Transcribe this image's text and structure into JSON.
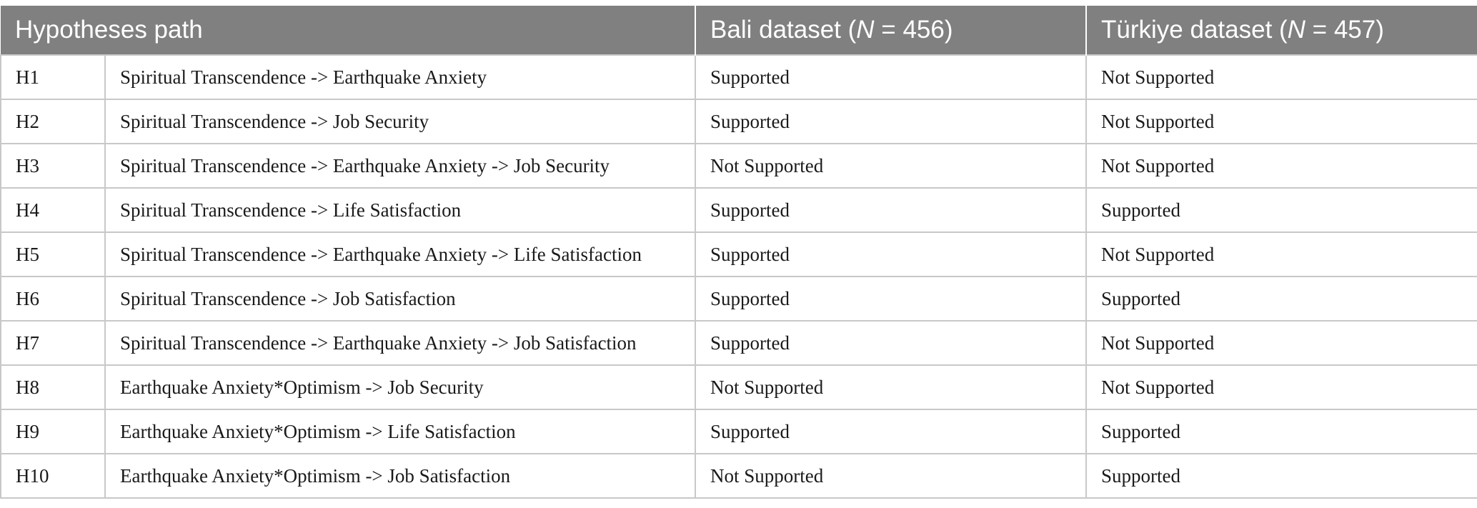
{
  "table": {
    "headers": {
      "hypotheses": "Hypotheses path",
      "bali_prefix": "Bali dataset (",
      "bali_n": "N",
      "bali_suffix": " = 456)",
      "turkiye_prefix": "Türkiye dataset (",
      "turkiye_n": "N",
      "turkiye_suffix": " = 457)"
    },
    "rows": [
      {
        "id": "H1",
        "path": "Spiritual Transcendence -> Earthquake Anxiety",
        "bali": "Supported",
        "turkiye": "Not Supported"
      },
      {
        "id": "H2",
        "path": "Spiritual Transcendence -> Job Security",
        "bali": "Supported",
        "turkiye": "Not Supported"
      },
      {
        "id": "H3",
        "path": "Spiritual Transcendence -> Earthquake Anxiety -> Job Security",
        "bali": "Not Supported",
        "turkiye": "Not Supported"
      },
      {
        "id": "H4",
        "path": "Spiritual Transcendence -> Life Satisfaction",
        "bali": "Supported",
        "turkiye": "Supported"
      },
      {
        "id": "H5",
        "path": "Spiritual Transcendence -> Earthquake Anxiety -> Life Satisfaction",
        "bali": "Supported",
        "turkiye": "Not Supported"
      },
      {
        "id": "H6",
        "path": "Spiritual Transcendence -> Job Satisfaction",
        "bali": "Supported",
        "turkiye": "Supported"
      },
      {
        "id": "H7",
        "path": "Spiritual Transcendence -> Earthquake Anxiety -> Job Satisfaction",
        "bali": "Supported",
        "turkiye": "Not Supported"
      },
      {
        "id": "H8",
        "path": "Earthquake Anxiety*Optimism -> Job Security",
        "bali": "Not Supported",
        "turkiye": "Not Supported"
      },
      {
        "id": "H9",
        "path": "Earthquake Anxiety*Optimism -> Life Satisfaction",
        "bali": "Supported",
        "turkiye": "Supported"
      },
      {
        "id": "H10",
        "path": "Earthquake Anxiety*Optimism -> Job Satisfaction",
        "bali": "Not Supported",
        "turkiye": "Supported"
      }
    ]
  }
}
